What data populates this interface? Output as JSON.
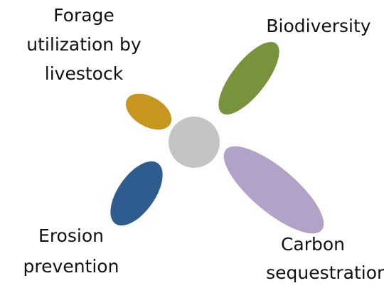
{
  "nodes": [
    {
      "label": [
        "Forage",
        "utilization by",
        "livestock"
      ]
    },
    {
      "label": [
        "Biodiversity"
      ]
    },
    {
      "label": [
        "Erosion",
        "prevention"
      ]
    },
    {
      "label": [
        "Carbon",
        "sequestration"
      ]
    }
  ]
}
